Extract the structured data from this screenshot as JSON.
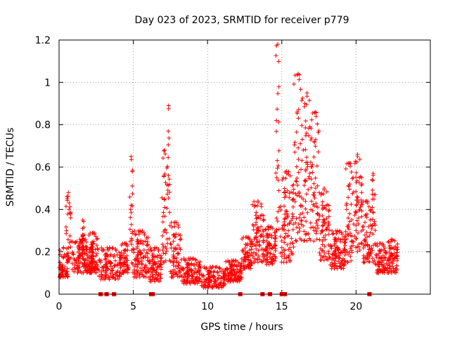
{
  "chart_data": {
    "type": "scatter",
    "title": "Day 023 of 2023, SRMTID for receiver p779",
    "xlabel": "GPS time / hours",
    "ylabel": "SRMTID / TECUs",
    "xlim": [
      0,
      25
    ],
    "ylim": [
      0,
      1.2
    ],
    "xticks": [
      "0",
      "5",
      "10",
      "15",
      "20"
    ],
    "yticks": [
      "0",
      "0.2",
      "0.4",
      "0.6",
      "0.8",
      "1",
      "1.2"
    ],
    "grid": true,
    "marker": "plus",
    "color": "#ff0000",
    "baseline_markers_x": [
      2.8,
      3.2,
      3.7,
      6.2,
      6.3,
      12.2,
      13.7,
      14.2,
      15.0,
      15.1,
      15.2,
      20.9
    ],
    "segments": [
      {
        "x0": 0.0,
        "x1": 0.6,
        "lo": 0.08,
        "hi": 0.22
      },
      {
        "x0": 0.45,
        "x1": 0.8,
        "lo": 0.15,
        "hi": 0.48
      },
      {
        "x0": 0.8,
        "x1": 2.3,
        "lo": 0.1,
        "hi": 0.26
      },
      {
        "x0": 1.5,
        "x1": 1.7,
        "lo": 0.2,
        "hi": 0.35
      },
      {
        "x0": 2.0,
        "x1": 2.6,
        "lo": 0.1,
        "hi": 0.29
      },
      {
        "x0": 2.6,
        "x1": 4.2,
        "lo": 0.07,
        "hi": 0.22
      },
      {
        "x0": 4.2,
        "x1": 4.7,
        "lo": 0.1,
        "hi": 0.24
      },
      {
        "x0": 4.75,
        "x1": 4.95,
        "lo": 0.2,
        "hi": 0.65
      },
      {
        "x0": 4.9,
        "x1": 6.0,
        "lo": 0.08,
        "hi": 0.3
      },
      {
        "x0": 6.0,
        "x1": 6.9,
        "lo": 0.06,
        "hi": 0.22
      },
      {
        "x0": 6.9,
        "x1": 7.3,
        "lo": 0.15,
        "hi": 0.68
      },
      {
        "x0": 7.3,
        "x1": 7.45,
        "lo": 0.25,
        "hi": 0.89
      },
      {
        "x0": 7.45,
        "x1": 8.2,
        "lo": 0.08,
        "hi": 0.34
      },
      {
        "x0": 8.2,
        "x1": 9.5,
        "lo": 0.05,
        "hi": 0.17
      },
      {
        "x0": 9.5,
        "x1": 11.2,
        "lo": 0.03,
        "hi": 0.13
      },
      {
        "x0": 11.2,
        "x1": 12.3,
        "lo": 0.06,
        "hi": 0.16
      },
      {
        "x0": 12.3,
        "x1": 13.0,
        "lo": 0.12,
        "hi": 0.27
      },
      {
        "x0": 13.0,
        "x1": 13.8,
        "lo": 0.15,
        "hi": 0.44
      },
      {
        "x0": 13.7,
        "x1": 14.6,
        "lo": 0.14,
        "hi": 0.32
      },
      {
        "x0": 14.6,
        "x1": 14.85,
        "lo": 0.3,
        "hi": 1.18
      },
      {
        "x0": 14.85,
        "x1": 15.8,
        "lo": 0.15,
        "hi": 0.58
      },
      {
        "x0": 15.8,
        "x1": 16.4,
        "lo": 0.25,
        "hi": 1.04
      },
      {
        "x0": 16.4,
        "x1": 17.0,
        "lo": 0.25,
        "hi": 0.95
      },
      {
        "x0": 17.0,
        "x1": 17.5,
        "lo": 0.25,
        "hi": 0.86
      },
      {
        "x0": 17.5,
        "x1": 18.2,
        "lo": 0.16,
        "hi": 0.5
      },
      {
        "x0": 18.2,
        "x1": 19.3,
        "lo": 0.12,
        "hi": 0.3
      },
      {
        "x0": 19.3,
        "x1": 19.8,
        "lo": 0.15,
        "hi": 0.62
      },
      {
        "x0": 19.8,
        "x1": 20.4,
        "lo": 0.2,
        "hi": 0.66
      },
      {
        "x0": 20.4,
        "x1": 21.0,
        "lo": 0.15,
        "hi": 0.44
      },
      {
        "x0": 21.0,
        "x1": 21.3,
        "lo": 0.15,
        "hi": 0.57
      },
      {
        "x0": 21.3,
        "x1": 22.0,
        "lo": 0.1,
        "hi": 0.24
      },
      {
        "x0": 22.0,
        "x1": 22.8,
        "lo": 0.1,
        "hi": 0.26
      }
    ]
  }
}
